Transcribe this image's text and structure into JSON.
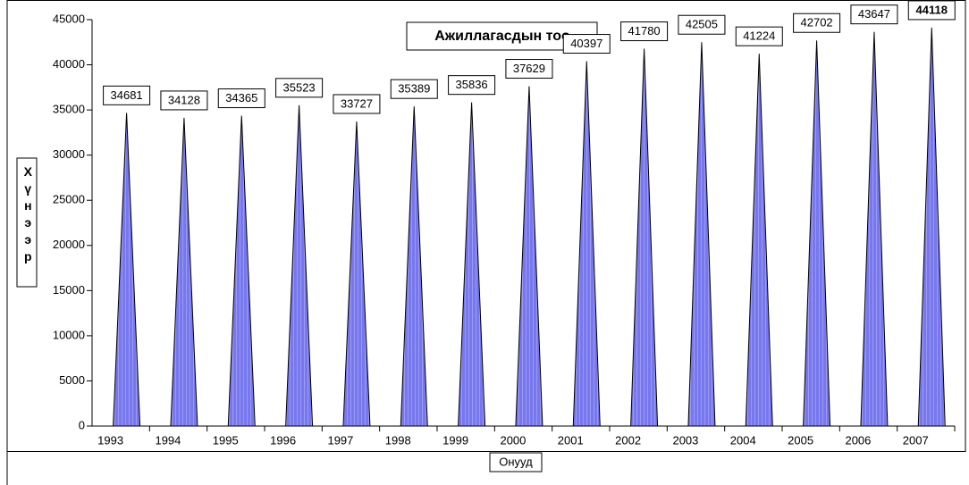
{
  "chart_data": {
    "type": "bar",
    "title": "Ажиллагасдын тоо",
    "x_label": "Онууд",
    "y_label": "Хүнээр",
    "categories": [
      "1993",
      "1994",
      "1995",
      "1996",
      "1997",
      "1998",
      "1999",
      "2000",
      "2001",
      "2002",
      "2003",
      "2004",
      "2005",
      "2006",
      "2007"
    ],
    "values": [
      34681,
      34128,
      34365,
      35523,
      33727,
      35389,
      35836,
      37629,
      40397,
      41780,
      42505,
      41224,
      42702,
      43647,
      44118
    ],
    "color": "#7777ee",
    "ylim": [
      0,
      45000
    ],
    "yticks": [
      0,
      5000,
      10000,
      15000,
      20000,
      25000,
      30000,
      35000,
      40000,
      45000
    ],
    "grid": false
  }
}
